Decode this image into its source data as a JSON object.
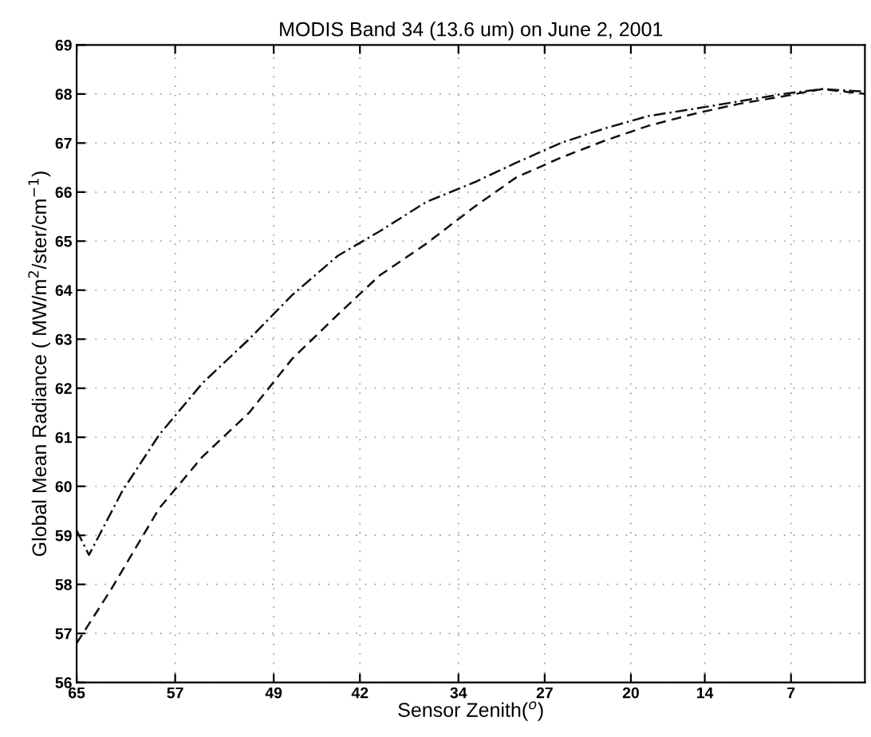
{
  "chart_data": {
    "type": "line",
    "title": "MODIS Band 34 (13.6 um) on June 2, 2001",
    "xlabel": "Sensor Zenith($^{o}$)",
    "ylabel": "Global Mean Radiance ( MW/m$^{2}$/ster/cm$^{−1}$)",
    "series": [
      {
        "color": "#111111",
        "line_style": "dotted",
        "x": [
          65,
          64,
          61.3,
          58.3,
          54.8,
          51,
          47.5,
          43.8,
          40.4,
          36.6,
          32.7,
          29.3,
          25.7,
          22.1,
          18.6,
          14.8,
          11.2,
          7.7,
          4.5,
          1
        ],
        "values": [
          59.1,
          58.6,
          59.9,
          61.05,
          62.1,
          63.0,
          63.9,
          64.7,
          65.2,
          65.8,
          66.2,
          66.6,
          67.0,
          67.3,
          67.55,
          67.7,
          67.85,
          68.0,
          68.1,
          68.05
        ]
      },
      {
        "color": "#111111",
        "line_style": "dashed",
        "x": [
          65,
          62.2,
          58.3,
          54.8,
          51,
          47.5,
          43.8,
          40.4,
          36.6,
          32.7,
          29.3,
          25.7,
          22.1,
          18.6,
          14.8,
          11.2,
          7.7,
          4.5,
          1
        ],
        "values": [
          56.8,
          57.9,
          59.55,
          60.6,
          61.5,
          62.6,
          63.5,
          64.3,
          64.95,
          65.7,
          66.3,
          66.7,
          67.05,
          67.35,
          67.6,
          67.8,
          67.95,
          68.1,
          68.0
        ]
      }
    ],
    "xlim": [
      65,
      1
    ],
    "xticks": [
      65,
      57,
      49,
      42,
      34,
      27,
      20,
      14,
      7
    ],
    "ylim": [
      56,
      69
    ],
    "yticks": [
      56,
      57,
      58,
      59,
      60,
      61,
      62,
      63,
      64,
      65,
      66,
      67,
      68,
      69
    ],
    "grid": true,
    "marker": "none"
  }
}
